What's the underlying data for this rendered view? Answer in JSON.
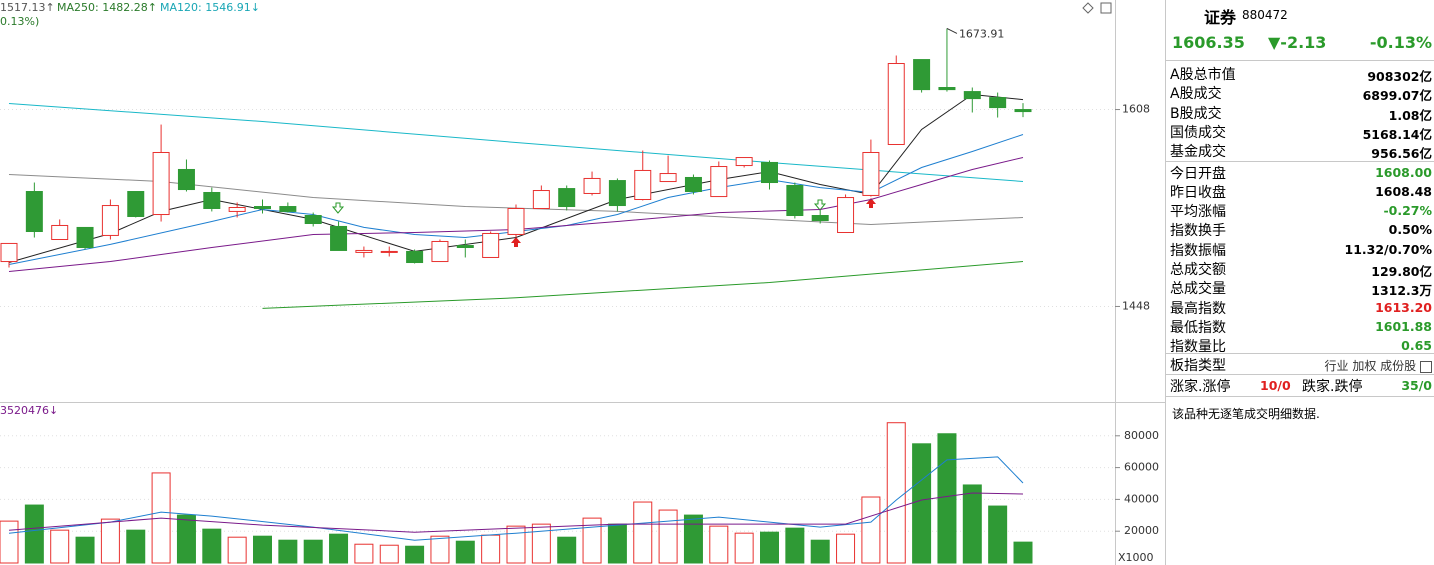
{
  "chart_data": [
    {
      "type": "candlestick",
      "header": [
        "1517.13↑",
        "MA250: 1482.28↑",
        "MA120: 1546.91↓"
      ],
      "header_sub": "0.13%)",
      "open": [
        1484.5,
        1541.4,
        1502.4,
        1512.2,
        1505.7,
        1541.4,
        1522.7,
        1559.3,
        1540.6,
        1525.2,
        1529.2,
        1529.2,
        1521.9,
        1513.0,
        1491.9,
        1491.9,
        1492.7,
        1484.5,
        1497.5,
        1487.8,
        1506.5,
        1527.6,
        1543.8,
        1539.8,
        1550.3,
        1534.9,
        1549.5,
        1552.8,
        1537.3,
        1562.5,
        1565.0,
        1546.3,
        1521.9,
        1508.1,
        1538.2,
        1579.6,
        1648.6,
        1625.9,
        1622.6,
        1617.7,
        1608.0
      ],
      "close": [
        1499.2,
        1508.9,
        1513.8,
        1495.9,
        1530.0,
        1521.1,
        1573.1,
        1543.0,
        1527.6,
        1528.4,
        1527.6,
        1525.2,
        1515.4,
        1493.5,
        1493.5,
        1492.7,
        1483.7,
        1500.8,
        1495.9,
        1507.3,
        1527.6,
        1542.2,
        1529.2,
        1552.0,
        1530.0,
        1558.5,
        1556.0,
        1541.4,
        1561.7,
        1569.0,
        1548.7,
        1521.9,
        1517.8,
        1536.5,
        1573.1,
        1645.4,
        1624.2,
        1624.2,
        1616.9,
        1609.6,
        1606.35
      ],
      "high": [
        1499.2,
        1548.7,
        1518.7,
        1512.2,
        1534.9,
        1541.4,
        1595.8,
        1567.4,
        1544.6,
        1532.5,
        1534.9,
        1532.5,
        1524.3,
        1517.0,
        1496.7,
        1496.7,
        1494.3,
        1502.4,
        1502.4,
        1508.9,
        1530.8,
        1546.3,
        1546.3,
        1557.6,
        1552.0,
        1574.7,
        1570.6,
        1555.2,
        1565.8,
        1569.0,
        1566.6,
        1548.7,
        1526.8,
        1539.0,
        1583.6,
        1651.9,
        1648.6,
        1673.91,
        1625.9,
        1621.8,
        1613.2
      ],
      "low": [
        1479.7,
        1504.0,
        1502.4,
        1494.3,
        1502.4,
        1520.3,
        1517.0,
        1541.4,
        1525.2,
        1520.3,
        1523.5,
        1524.3,
        1513.0,
        1493.5,
        1487.8,
        1488.6,
        1482.9,
        1484.5,
        1487.8,
        1487.8,
        1504.0,
        1527.6,
        1526.0,
        1538.2,
        1525.2,
        1534.1,
        1549.5,
        1539.0,
        1537.3,
        1560.9,
        1543.0,
        1519.5,
        1515.4,
        1508.1,
        1537.3,
        1579.6,
        1621.8,
        1622.6,
        1605.6,
        1601.5,
        1601.88
      ],
      "up_color": "#e8312f",
      "down_color": "#2f9a35",
      "ylim": [
        1372,
        1697
      ],
      "yticks": [
        1448,
        1608
      ],
      "max_label": "1673.91",
      "lines": [
        {
          "color": "#19b8c8",
          "x": [
            0,
            10,
            20,
            30,
            40
          ],
          "values": [
            1612.9,
            1598.3,
            1581.2,
            1565.0,
            1549.5
          ]
        },
        {
          "color": "#8c8c8c",
          "x": [
            0,
            6,
            12,
            18,
            24,
            30,
            34,
            40
          ],
          "values": [
            1555.2,
            1549.5,
            1536.5,
            1529.2,
            1525.2,
            1518.7,
            1514.6,
            1520.3
          ]
        },
        {
          "color": "#2a9a2a",
          "x": [
            10,
            20,
            30,
            40
          ],
          "values": [
            1446.4,
            1455.0,
            1467.5,
            1484.5
          ]
        },
        {
          "color": "#222222",
          "x": [
            0,
            4,
            6,
            8,
            12,
            16,
            20,
            24,
            28,
            30,
            32,
            34,
            36,
            38,
            40
          ],
          "values": [
            1483.7,
            1507.3,
            1525.2,
            1534.9,
            1518.7,
            1492.7,
            1504.0,
            1534.9,
            1551.1,
            1557.6,
            1547.1,
            1539.0,
            1591.8,
            1620.2,
            1616.1
          ]
        },
        {
          "color": "#1e7fd0",
          "x": [
            0,
            4,
            8,
            10,
            12,
            14,
            16,
            18,
            20,
            22,
            24,
            26,
            28,
            30,
            32,
            34,
            36,
            38,
            40
          ],
          "values": [
            1482.1,
            1498.4,
            1517.0,
            1526.8,
            1522.7,
            1512.2,
            1506.5,
            1504.0,
            1508.9,
            1513.8,
            1522.7,
            1536.5,
            1544.6,
            1551.1,
            1544.6,
            1540.6,
            1560.9,
            1573.9,
            1587.7
          ]
        },
        {
          "color": "#7a1a8a",
          "x": [
            0,
            4,
            8,
            12,
            16,
            20,
            24,
            28,
            32,
            34,
            36,
            38,
            40
          ],
          "values": [
            1476.4,
            1484.5,
            1495.9,
            1506.5,
            1508.1,
            1510.5,
            1517.0,
            1524.3,
            1526.8,
            1534.9,
            1547.1,
            1559.3,
            1569.0
          ]
        }
      ]
    },
    {
      "type": "volume",
      "header": "3520476↓",
      "unit_label": "X1000",
      "values": [
        26340,
        36440,
        20650,
        16230,
        27600,
        20650,
        56650,
        30130,
        21290,
        16230,
        16860,
        14340,
        14340,
        18130,
        11810,
        11180,
        10550,
        16860,
        13710,
        17500,
        23180,
        24440,
        16230,
        28230,
        24440,
        38340,
        33290,
        30130,
        23180,
        18760,
        19390,
        21920,
        14340,
        18130,
        41500,
        88230,
        74970,
        81290,
        49080,
        35810,
        13123
      ],
      "ylim": [
        0,
        100000
      ],
      "yticks": [
        20000,
        40000,
        60000,
        80000
      ],
      "lines": [
        {
          "color": "#1e7fd0",
          "x": [
            0,
            4,
            6,
            8,
            12,
            16,
            20,
            24,
            28,
            32,
            34,
            35,
            37,
            39,
            40
          ],
          "values": [
            18760,
            25710,
            32020,
            29500,
            22550,
            14340,
            18760,
            23810,
            28860,
            22550,
            25710,
            39600,
            64870,
            66760,
            50340
          ]
        },
        {
          "color": "#7a1a8a",
          "x": [
            0,
            6,
            10,
            16,
            24,
            30,
            33,
            36,
            38,
            40
          ],
          "values": [
            20650,
            28230,
            23810,
            19390,
            24440,
            24440,
            24440,
            39600,
            44020,
            43390
          ]
        }
      ]
    }
  ],
  "panel": {
    "name": "证券",
    "code": "880472",
    "price": "1606.35",
    "change": "▼-2.13",
    "pct": "-0.13%",
    "rows": [
      [
        "A股总市值",
        "908302亿"
      ],
      [
        "A股成交",
        "6899.07亿"
      ],
      [
        "B股成交",
        "1.08亿"
      ],
      [
        "国债成交",
        "5168.14亿"
      ],
      [
        "基金成交",
        "956.56亿"
      ],
      [
        "今日开盘",
        "1608.00"
      ],
      [
        "昨日收盘",
        "1608.48"
      ],
      [
        "平均涨幅",
        "-0.27%"
      ],
      [
        "指数换手",
        "0.50%"
      ],
      [
        "指数振幅",
        "11.32/0.70%"
      ],
      [
        "总成交额",
        "129.80亿"
      ],
      [
        "总成交量",
        "1312.3万"
      ],
      [
        "最高指数",
        "1613.20"
      ],
      [
        "最低指数",
        "1601.88"
      ],
      [
        "指数量比",
        "0.65"
      ]
    ],
    "type_label": "板指类型",
    "type_items": [
      "行业",
      "加权",
      "成份股"
    ],
    "updown": [
      "涨家.涨停",
      "10/0",
      "跌家.跌停",
      "35/0"
    ],
    "note": "该品种无逐笔成交明细数据."
  }
}
